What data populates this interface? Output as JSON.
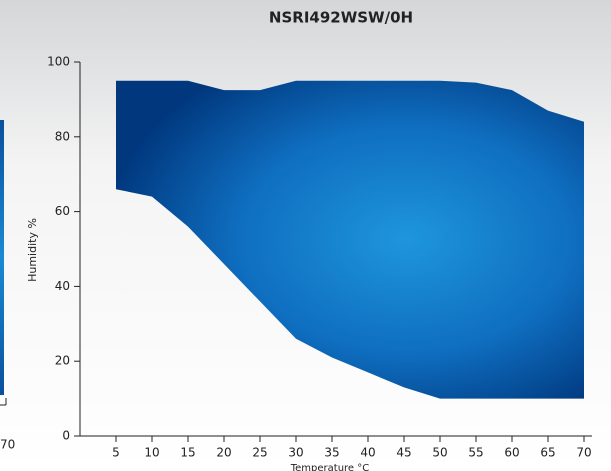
{
  "chart_data": {
    "type": "range-area",
    "title": "NSRI492WSW/0H",
    "y_label": "Humidity %",
    "x_label": "Temperature °C",
    "x": [
      5,
      10,
      15,
      20,
      25,
      30,
      35,
      40,
      45,
      50,
      55,
      60,
      65,
      70
    ],
    "high": [
      95,
      95,
      95,
      92.5,
      92.5,
      95,
      95,
      95,
      95,
      95,
      94.5,
      92.5,
      87,
      84
    ],
    "low": [
      66,
      64,
      56,
      46,
      36,
      26,
      21,
      17,
      13,
      10,
      10,
      10,
      10,
      10
    ],
    "color": "#0f6fc0",
    "xlim": [
      0,
      70
    ],
    "ylim": [
      0,
      100
    ],
    "xticks": [
      5,
      10,
      15,
      20,
      25,
      30,
      35,
      40,
      45,
      50,
      55,
      60,
      65,
      70
    ],
    "yticks": [
      0,
      20,
      40,
      60,
      80,
      100
    ]
  },
  "background_fragment": {
    "x_tick": "70"
  }
}
